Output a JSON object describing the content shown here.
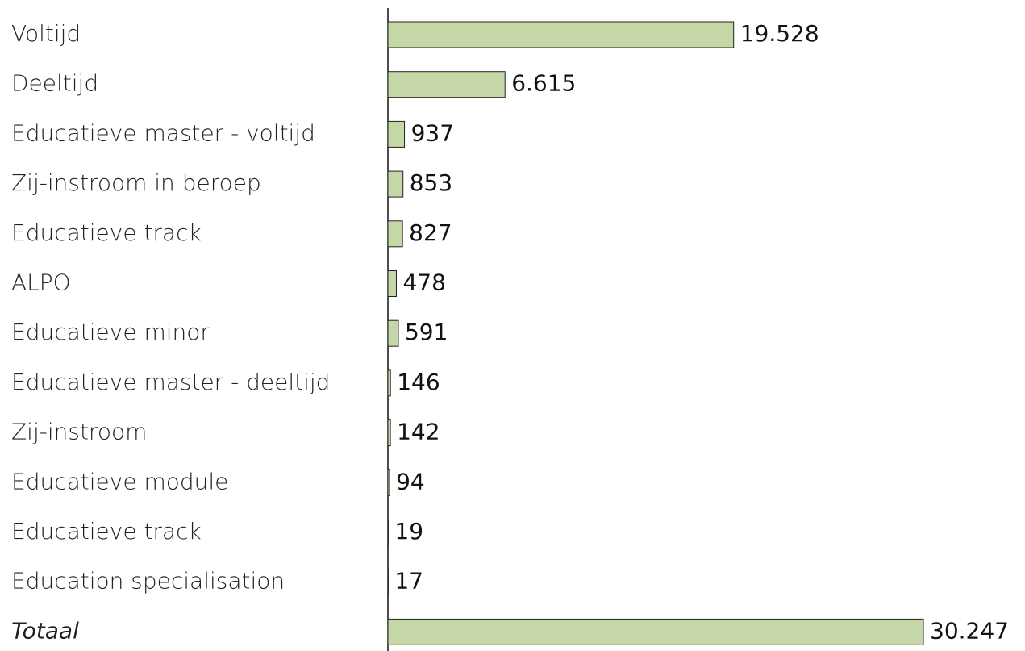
{
  "chart_data": {
    "type": "bar",
    "orientation": "horizontal",
    "categories": [
      "Voltijd",
      "Deeltijd",
      "Educatieve master - voltijd",
      "Zij-instroom in beroep",
      "Educatieve track",
      "ALPO",
      "Educatieve minor",
      "Educatieve master - deeltijd",
      "Zij-instroom",
      "Educatieve module",
      "Educatieve track",
      "Education specialisation",
      "Totaal"
    ],
    "values": [
      19528,
      6615,
      937,
      853,
      827,
      478,
      591,
      146,
      142,
      94,
      19,
      17,
      30247
    ],
    "value_labels": [
      "19.528",
      "6.615",
      "937",
      "853",
      "827",
      "478",
      "591",
      "146",
      "142",
      "94",
      "19",
      "17",
      "30.247"
    ],
    "color": "#c6d7a7",
    "xlim": [
      0,
      30247
    ]
  }
}
